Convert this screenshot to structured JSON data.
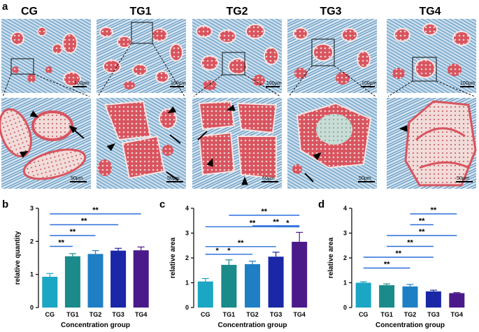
{
  "figure": {
    "panel_letters": [
      "a",
      "b",
      "c",
      "d"
    ],
    "groups": [
      "CG",
      "TG1",
      "TG2",
      "TG3",
      "TG4"
    ],
    "scale_bars": {
      "top": "100µm",
      "bottom": "50µm"
    },
    "arrow_legend": {
      "arrow": "arrow",
      "arrowhead": "arrowhead"
    }
  },
  "colors": {
    "bars": [
      "#1ba6c4",
      "#1a8a8a",
      "#1f7fc4",
      "#1a27a6",
      "#4a1a8a"
    ],
    "significance_line": "#2a6fdb",
    "tissue_blue": "#6fa3c9",
    "tissue_red": "#d8545f",
    "tissue_pale": "#f1dcd9"
  },
  "chart_data": [
    {
      "type": "bar",
      "panel": "b",
      "categories": [
        "CG",
        "TG1",
        "TG2",
        "TG3",
        "TG4"
      ],
      "values": [
        0.93,
        1.55,
        1.62,
        1.72,
        1.73
      ],
      "errors": [
        0.1,
        0.08,
        0.1,
        0.07,
        0.1
      ],
      "xlabel": "Concentration group",
      "ylabel": "relative quantity",
      "ylim": [
        0,
        3
      ],
      "yticks": [
        0,
        1,
        2,
        3
      ],
      "significance": [
        {
          "from": 0,
          "to": 1,
          "label": "**"
        },
        {
          "from": 0,
          "to": 2,
          "label": "**"
        },
        {
          "from": 0,
          "to": 3,
          "label": "**"
        },
        {
          "from": 0,
          "to": 4,
          "label": "**"
        }
      ]
    },
    {
      "type": "bar",
      "panel": "c",
      "categories": [
        "CG",
        "TG1",
        "TG2",
        "TG3",
        "TG4"
      ],
      "values": [
        1.05,
        1.72,
        1.75,
        2.05,
        2.65
      ],
      "errors": [
        0.12,
        0.2,
        0.12,
        0.18,
        0.38
      ],
      "xlabel": "Concentration group",
      "ylabel": "relative area",
      "ylim": [
        0,
        4
      ],
      "yticks": [
        0,
        1,
        2,
        3,
        4
      ],
      "significance": [
        {
          "from": 0,
          "to": 1,
          "label": "*"
        },
        {
          "from": 0,
          "to": 2,
          "label": "*"
        },
        {
          "from": 0,
          "to": 3,
          "label": "**"
        },
        {
          "from": 0,
          "to": 4,
          "label": "**"
        },
        {
          "from": 3,
          "to": 4,
          "label": "*"
        },
        {
          "from": 2,
          "to": 4,
          "label": "**"
        },
        {
          "from": 1,
          "to": 4,
          "label": "**"
        }
      ]
    },
    {
      "type": "bar",
      "panel": "d",
      "categories": [
        "CG",
        "TG1",
        "TG2",
        "TG3",
        "TG4"
      ],
      "values": [
        1.0,
        0.9,
        0.85,
        0.65,
        0.58
      ],
      "errors": [
        0.04,
        0.05,
        0.08,
        0.05,
        0.02
      ],
      "xlabel": "Concentration group",
      "ylabel": "relative area",
      "ylim": [
        0,
        4
      ],
      "yticks": [
        0,
        1,
        2,
        3,
        4
      ],
      "significance": [
        {
          "from": 0,
          "to": 2,
          "label": "**"
        },
        {
          "from": 0,
          "to": 3,
          "label": "**"
        },
        {
          "from": 1,
          "to": 3,
          "label": "**"
        },
        {
          "from": 1,
          "to": 4,
          "label": "**"
        },
        {
          "from": 2,
          "to": 3,
          "label": "**"
        },
        {
          "from": 2,
          "to": 4,
          "label": "**"
        }
      ]
    }
  ]
}
